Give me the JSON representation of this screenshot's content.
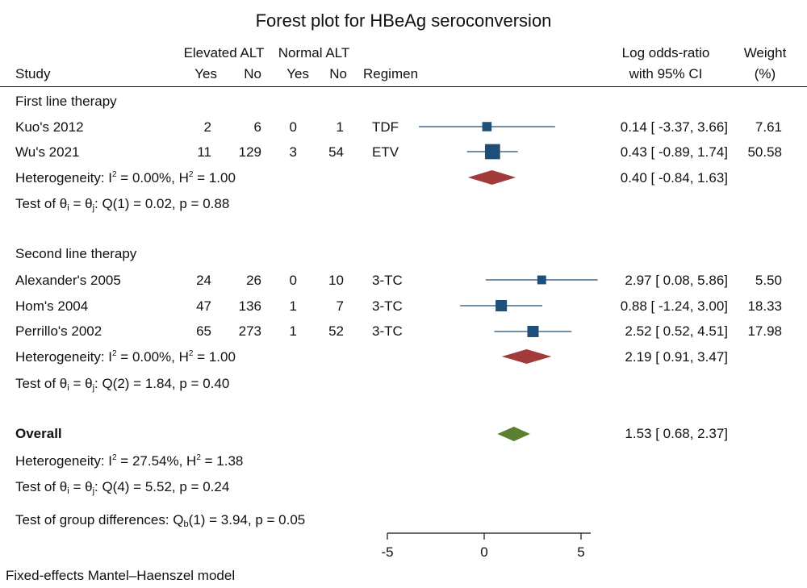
{
  "title": "Forest plot for HBeAg seroconversion",
  "header": {
    "study": "Study",
    "elevated_alt": "Elevated ALT",
    "normal_alt": "Normal ALT",
    "yes": "Yes",
    "no": "No",
    "regimen": "Regimen",
    "effect_line1": "Log odds-ratio",
    "effect_line2": "with 95% CI",
    "weight_line1": "Weight",
    "weight_line2": "(%)"
  },
  "groups": [
    {
      "label": "First line therapy",
      "studies": [
        {
          "name": "Kuo's 2012",
          "elev_yes": "2",
          "elev_no": "6",
          "norm_yes": "0",
          "norm_no": "1",
          "regimen": "TDF",
          "ci_text": "0.14 [ -3.37,  3.66]",
          "weight_text": "7.61"
        },
        {
          "name": "Wu's 2021",
          "elev_yes": "11",
          "elev_no": "129",
          "norm_yes": "3",
          "norm_no": "54",
          "regimen": "ETV",
          "ci_text": "0.43 [ -0.89,  1.74]",
          "weight_text": "50.58"
        }
      ],
      "het": {
        "prefix": "Heterogeneity: I",
        "sup": "2",
        "mid": " = 0.00%, H",
        "sup2": "2",
        "suffix": " = 1.00"
      },
      "pooled_text": "0.40 [ -0.84,  1.63]",
      "test": {
        "prefix": "Test of θ",
        "sub1": "i",
        "mid": " = θ",
        "sub2": "j",
        "suffix": ": Q(1) = 0.02, p = 0.88"
      }
    },
    {
      "label": "Second line therapy",
      "studies": [
        {
          "name": "Alexander's 2005",
          "elev_yes": "24",
          "elev_no": "26",
          "norm_yes": "0",
          "norm_no": "10",
          "regimen": "3-TC",
          "ci_text": "2.97 [  0.08,  5.86]",
          "weight_text": "5.50"
        },
        {
          "name": "Hom's 2004",
          "elev_yes": "47",
          "elev_no": "136",
          "norm_yes": "1",
          "norm_no": "7",
          "regimen": "3-TC",
          "ci_text": "0.88 [ -1.24,  3.00]",
          "weight_text": "18.33"
        },
        {
          "name": "Perrillo's 2002",
          "elev_yes": "65",
          "elev_no": "273",
          "norm_yes": "1",
          "norm_no": "52",
          "regimen": "3-TC",
          "ci_text": "2.52 [  0.52,  4.51]",
          "weight_text": "17.98"
        }
      ],
      "het": {
        "prefix": "Heterogeneity: I",
        "sup": "2",
        "mid": " = 0.00%, H",
        "sup2": "2",
        "suffix": " = 1.00"
      },
      "pooled_text": "2.19 [  0.91,  3.47]",
      "test": {
        "prefix": "Test of θ",
        "sub1": "i",
        "mid": " = θ",
        "sub2": "j",
        "suffix": ": Q(2) = 1.84, p = 0.40"
      }
    }
  ],
  "overall": {
    "label": "Overall",
    "ci_text": "1.53 [  0.68,  2.37]",
    "het": {
      "prefix": "Heterogeneity: I",
      "sup": "2",
      "mid": " = 27.54%, H",
      "sup2": "2",
      "suffix": " = 1.38"
    },
    "test": {
      "prefix": "Test of θ",
      "sub1": "i",
      "mid": " = θ",
      "sub2": "j",
      "suffix": ": Q(4) = 5.52, p = 0.24"
    },
    "group_diff": {
      "prefix": "Test of group differences: Q",
      "sub": "b",
      "suffix": "(1) = 3.94, p = 0.05"
    }
  },
  "footnote": "Fixed-effects Mantel–Haenszel model",
  "colors": {
    "study_marker": "#1f4e79",
    "subgroup_diamond": "#a33a3a",
    "overall_diamond": "#5a7f2e",
    "ci_line": "#1f4e79"
  },
  "chart_data": {
    "type": "forest",
    "xlim": [
      -5,
      5.5
    ],
    "xticks": [
      -5,
      0,
      5
    ],
    "xtick_labels": [
      "-5",
      "0",
      "5"
    ],
    "studies": [
      {
        "name": "Kuo's 2012",
        "est": 0.14,
        "lo": -3.37,
        "hi": 3.66,
        "weight": 7.61
      },
      {
        "name": "Wu's 2021",
        "est": 0.43,
        "lo": -0.89,
        "hi": 1.74,
        "weight": 50.58
      },
      {
        "name": "Alexander's 2005",
        "est": 2.97,
        "lo": 0.08,
        "hi": 5.86,
        "weight": 5.5
      },
      {
        "name": "Hom's 2004",
        "est": 0.88,
        "lo": -1.24,
        "hi": 3.0,
        "weight": 18.33
      },
      {
        "name": "Perrillo's 2002",
        "est": 2.52,
        "lo": 0.52,
        "hi": 4.51,
        "weight": 17.98
      }
    ],
    "subgroups": [
      {
        "name": "First line therapy",
        "est": 0.4,
        "lo": -0.84,
        "hi": 1.63
      },
      {
        "name": "Second line therapy",
        "est": 2.19,
        "lo": 0.91,
        "hi": 3.47
      }
    ],
    "overall": {
      "est": 1.53,
      "lo": 0.68,
      "hi": 2.37
    }
  }
}
